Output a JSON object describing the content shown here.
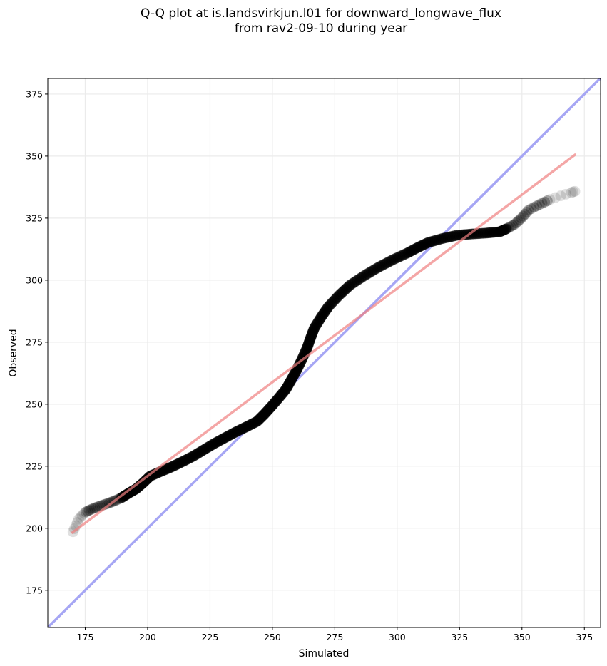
{
  "chart_data": {
    "type": "scatter",
    "title_line1": "Q-Q plot at is.landsvirkjun.l01 for downward_longwave_flux",
    "title_line2": "from rav2-09-10 during year",
    "xlabel": "Simulated",
    "ylabel": "Observed",
    "xlim": [
      160,
      381.5
    ],
    "ylim": [
      160,
      381.3
    ],
    "xticks": [
      175,
      200,
      225,
      250,
      275,
      300,
      325,
      350,
      375
    ],
    "yticks": [
      175,
      200,
      225,
      250,
      275,
      300,
      325,
      350,
      375
    ],
    "grid": true,
    "series": [
      {
        "name": "quantiles",
        "kind": "scatter",
        "color": "#000000",
        "points": [
          [
            170.1,
            198.6
          ],
          [
            171.2,
            201.0
          ],
          [
            172.4,
            203.7
          ],
          [
            173.8,
            205.3
          ],
          [
            175.3,
            206.6
          ],
          [
            178.0,
            207.9
          ],
          [
            181.0,
            209.0
          ],
          [
            184.0,
            210.0
          ],
          [
            186.7,
            211.0
          ],
          [
            189.5,
            212.3
          ],
          [
            192.5,
            214.2
          ],
          [
            195.3,
            215.8
          ],
          [
            198.2,
            218.3
          ],
          [
            201.0,
            221.0
          ],
          [
            205.3,
            222.9
          ],
          [
            209.6,
            224.7
          ],
          [
            213.9,
            226.8
          ],
          [
            218.2,
            229.0
          ],
          [
            222.5,
            231.6
          ],
          [
            226.8,
            234.2
          ],
          [
            231.0,
            236.5
          ],
          [
            235.3,
            238.8
          ],
          [
            239.6,
            240.9
          ],
          [
            243.9,
            243.1
          ],
          [
            246.8,
            246.0
          ],
          [
            249.6,
            249.1
          ],
          [
            252.5,
            252.5
          ],
          [
            255.4,
            256.0
          ],
          [
            257.5,
            259.7
          ],
          [
            259.6,
            263.5
          ],
          [
            261.8,
            268.0
          ],
          [
            263.9,
            272.7
          ],
          [
            265.3,
            276.7
          ],
          [
            266.8,
            280.7
          ],
          [
            269.6,
            285.2
          ],
          [
            272.5,
            289.4
          ],
          [
            276.8,
            294.0
          ],
          [
            281.1,
            298.0
          ],
          [
            286.8,
            301.8
          ],
          [
            292.5,
            305.2
          ],
          [
            298.2,
            308.2
          ],
          [
            304.0,
            310.9
          ],
          [
            308.3,
            313.2
          ],
          [
            312.5,
            315.2
          ],
          [
            318.2,
            316.8
          ],
          [
            324.0,
            318.1
          ],
          [
            330.0,
            318.6
          ],
          [
            336.0,
            319.0
          ],
          [
            341.1,
            319.5
          ],
          [
            344.0,
            320.8
          ],
          [
            346.9,
            322.4
          ],
          [
            349.8,
            325.0
          ],
          [
            352.6,
            328.2
          ],
          [
            357.0,
            330.5
          ],
          [
            361.2,
            332.5
          ],
          [
            365.5,
            334.0
          ],
          [
            369.8,
            335.3
          ],
          [
            371.2,
            335.8
          ]
        ]
      },
      {
        "name": "regression",
        "kind": "line",
        "color": "#f4a6a6",
        "points": [
          [
            169.5,
            198.0
          ],
          [
            371.6,
            350.8
          ]
        ]
      },
      {
        "name": "one-to-one",
        "kind": "line",
        "color": "#a6a6f4",
        "points": [
          [
            160,
            160
          ],
          [
            381.5,
            381.5
          ]
        ]
      }
    ]
  }
}
